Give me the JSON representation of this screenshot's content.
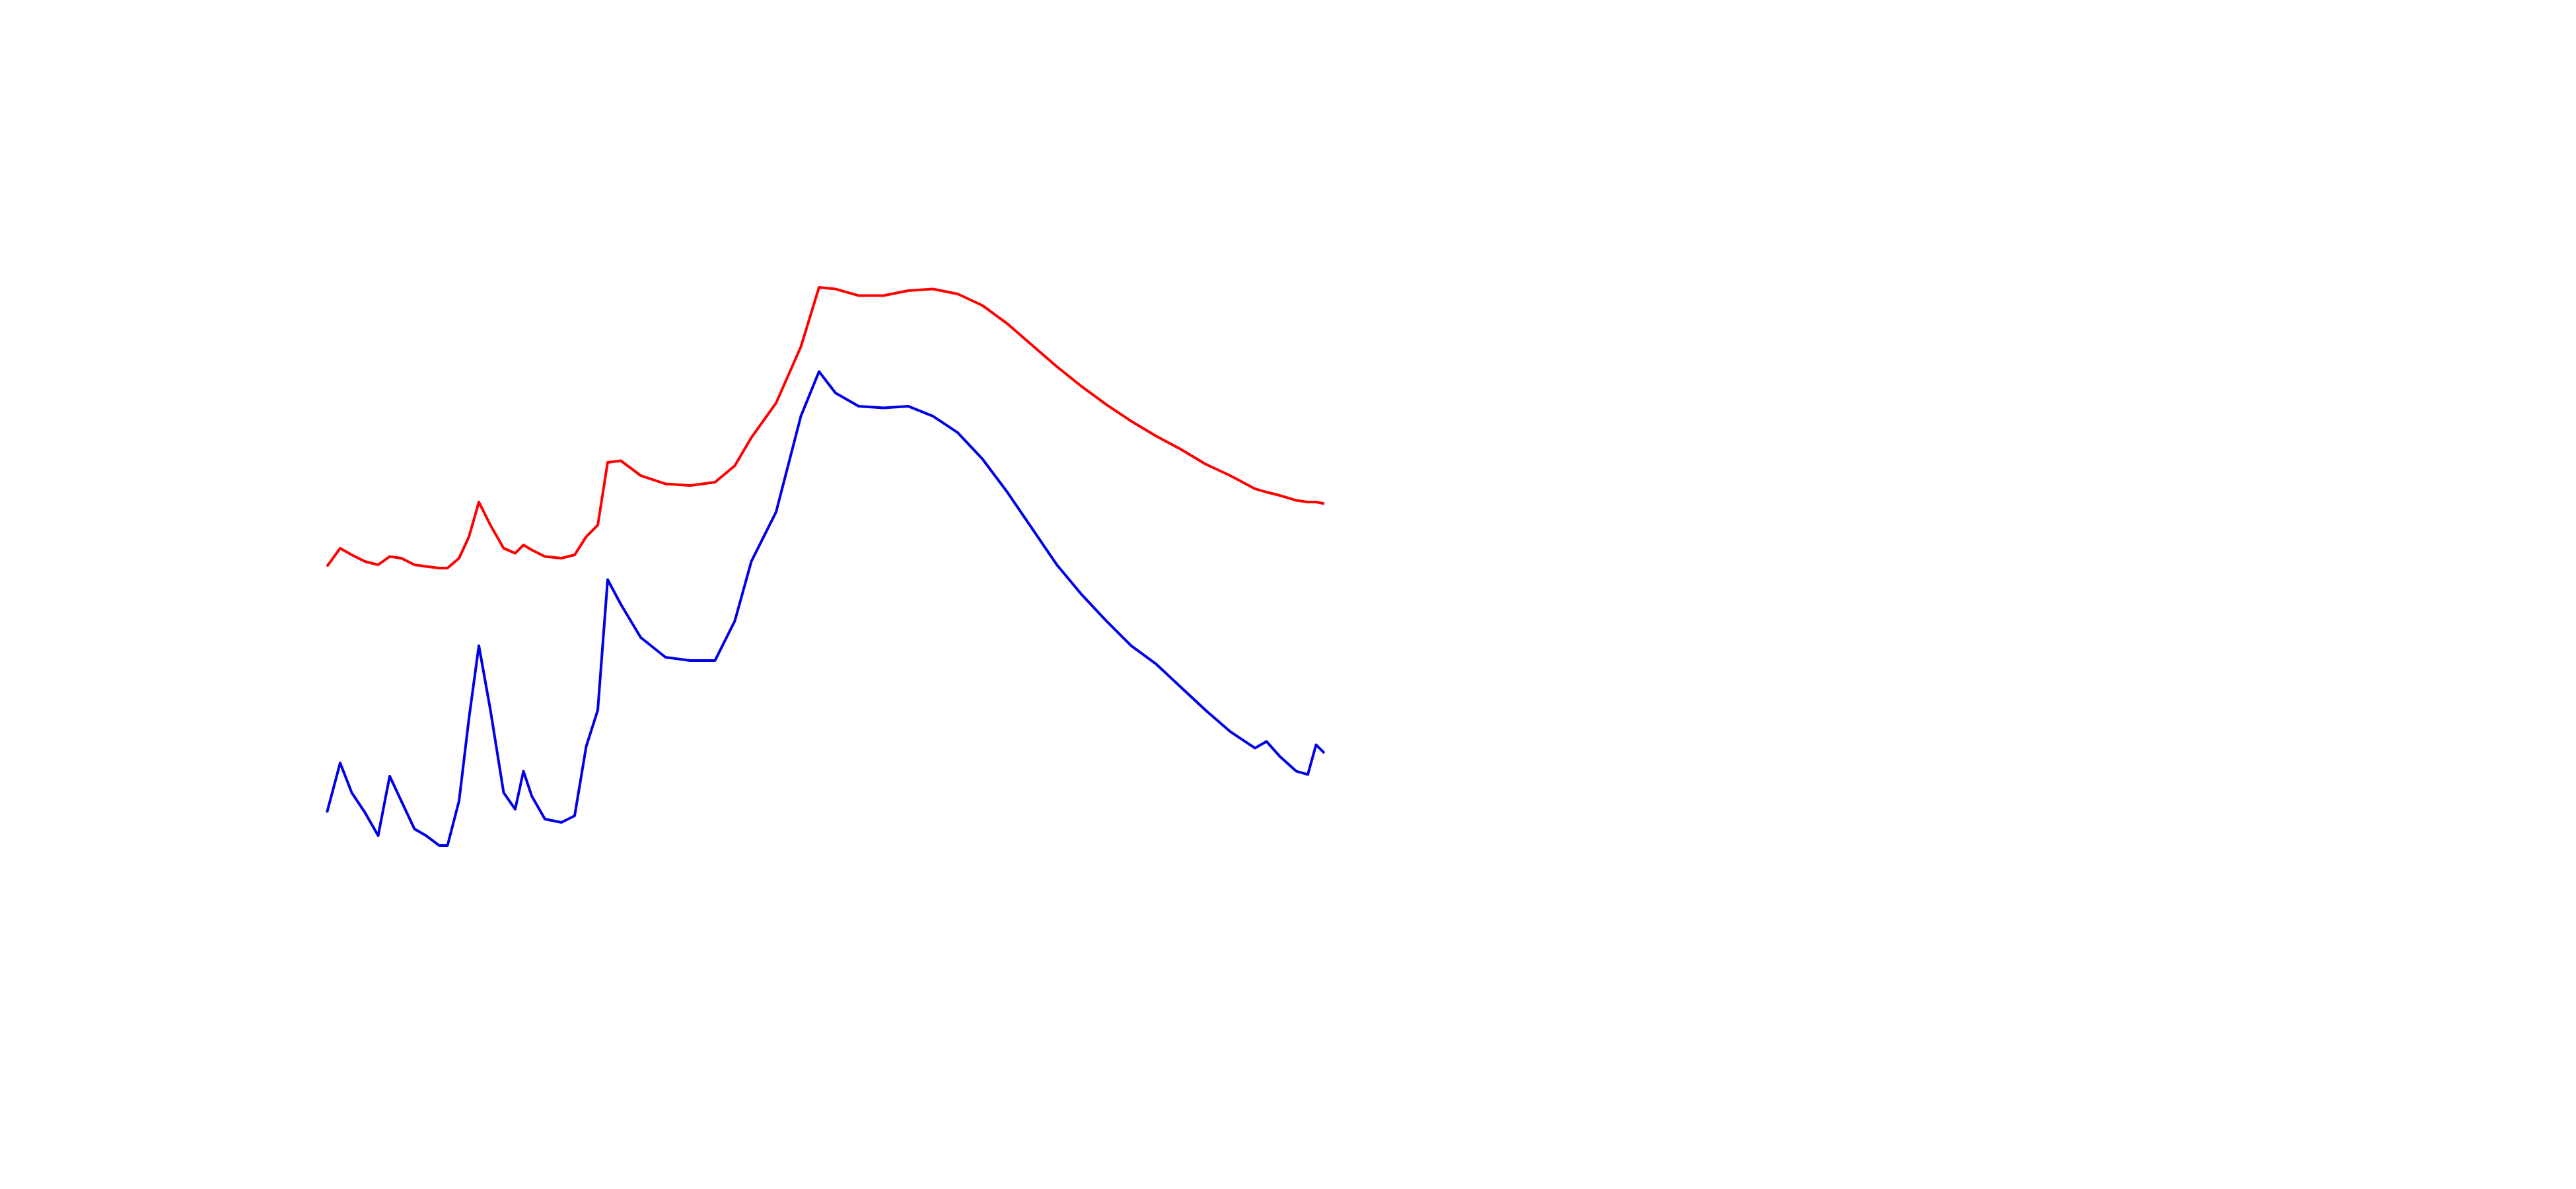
{
  "chart_data": {
    "type": "line",
    "xlim": [
      0,
      1560
    ],
    "ylim": [
      0,
      720
    ],
    "x": [
      198,
      206,
      213,
      221,
      229,
      236,
      243,
      251,
      258,
      266,
      271,
      278,
      284,
      290,
      297,
      305,
      312,
      317,
      322,
      330,
      340,
      348,
      355,
      362,
      368,
      376,
      388,
      403,
      418,
      433,
      445,
      455,
      470,
      485,
      496,
      506,
      520,
      535,
      550,
      565,
      580,
      595,
      610,
      625,
      640,
      655,
      670,
      685,
      700,
      715,
      730,
      745,
      760,
      767,
      775,
      785,
      792,
      797,
      802
    ],
    "series": [
      {
        "color": "#ff0000",
        "values": [
          377,
          388,
          384,
          380,
          378,
          383,
          382,
          378,
          377,
          376,
          376,
          382,
          395,
          416,
          402,
          388,
          385,
          390,
          387,
          383,
          382,
          384,
          395,
          402,
          440,
          441,
          432,
          427,
          426,
          428,
          438,
          455,
          476,
          510,
          546,
          545,
          541,
          541,
          544,
          545,
          542,
          535,
          524,
          511,
          498,
          486,
          475,
          465,
          456,
          448,
          439,
          432,
          424,
          422,
          420,
          417,
          416,
          416,
          415
        ]
      },
      {
        "color": "#0000e6",
        "values": [
          228,
          258,
          240,
          228,
          214,
          250,
          235,
          218,
          214,
          208,
          208,
          235,
          285,
          329,
          290,
          240,
          230,
          253,
          238,
          224,
          222,
          226,
          268,
          290,
          369,
          354,
          334,
          322,
          320,
          320,
          344,
          380,
          410,
          468,
          495,
          482,
          474,
          473,
          474,
          468,
          458,
          442,
          422,
          400,
          378,
          360,
          344,
          329,
          318,
          304,
          290,
          277,
          267,
          271,
          262,
          253,
          251,
          269,
          264
        ]
      }
    ]
  }
}
